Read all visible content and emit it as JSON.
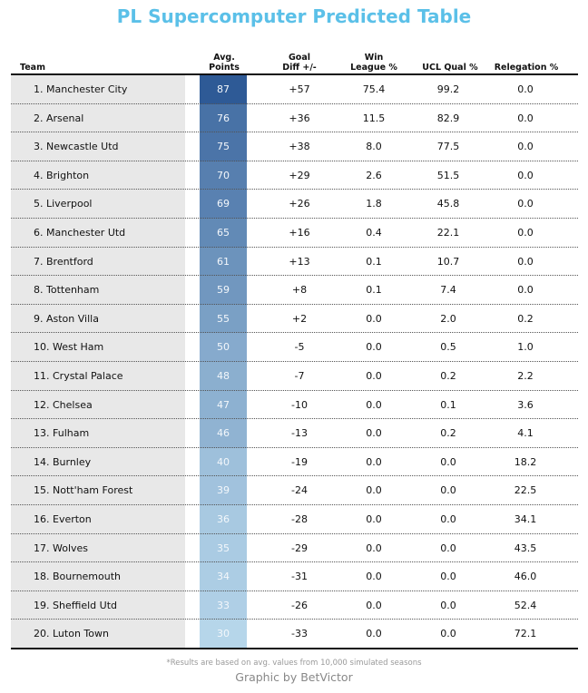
{
  "title": "PL Supercomputer Predicted Table",
  "headers": {
    "team": "Team",
    "pts_1": "Avg.",
    "pts_2": "Points",
    "gd_1": "Goal",
    "gd_2": "Diff +/-",
    "win_1": "Win",
    "win_2": "League %",
    "ucl": "UCL Qual %",
    "rel": "Relegation %"
  },
  "footnote": "*Results are based on avg. values from 10,000 simulated seasons",
  "credit": "Graphic by BetVictor",
  "colors": {
    "title": "#5bc0e8",
    "points_high": "#2e5a96",
    "points_low": "#b6d6ea"
  },
  "chart_data": {
    "type": "table",
    "columns": [
      "Team",
      "Avg. Points",
      "Goal Diff +/-",
      "Win League %",
      "UCL Qual %",
      "Relegation %"
    ],
    "rows": [
      {
        "team": "1. Manchester City",
        "points": "87",
        "gd": "+57",
        "win": "75.4",
        "ucl": "99.2",
        "rel": "0.0"
      },
      {
        "team": "2. Arsenal",
        "points": "76",
        "gd": "+36",
        "win": "11.5",
        "ucl": "82.9",
        "rel": "0.0"
      },
      {
        "team": "3. Newcastle Utd",
        "points": "75",
        "gd": "+38",
        "win": "8.0",
        "ucl": "77.5",
        "rel": "0.0"
      },
      {
        "team": "4. Brighton",
        "points": "70",
        "gd": "+29",
        "win": "2.6",
        "ucl": "51.5",
        "rel": "0.0"
      },
      {
        "team": "5. Liverpool",
        "points": "69",
        "gd": "+26",
        "win": "1.8",
        "ucl": "45.8",
        "rel": "0.0"
      },
      {
        "team": "6. Manchester Utd",
        "points": "65",
        "gd": "+16",
        "win": "0.4",
        "ucl": "22.1",
        "rel": "0.0"
      },
      {
        "team": "7. Brentford",
        "points": "61",
        "gd": "+13",
        "win": "0.1",
        "ucl": "10.7",
        "rel": "0.0"
      },
      {
        "team": "8. Tottenham",
        "points": "59",
        "gd": "+8",
        "win": "0.1",
        "ucl": "7.4",
        "rel": "0.0"
      },
      {
        "team": "9. Aston Villa",
        "points": "55",
        "gd": "+2",
        "win": "0.0",
        "ucl": "2.0",
        "rel": "0.2"
      },
      {
        "team": "10. West Ham",
        "points": "50",
        "gd": "-5",
        "win": "0.0",
        "ucl": "0.5",
        "rel": "1.0"
      },
      {
        "team": "11. Crystal Palace",
        "points": "48",
        "gd": "-7",
        "win": "0.0",
        "ucl": "0.2",
        "rel": "2.2"
      },
      {
        "team": "12. Chelsea",
        "points": "47",
        "gd": "-10",
        "win": "0.0",
        "ucl": "0.1",
        "rel": "3.6"
      },
      {
        "team": "13. Fulham",
        "points": "46",
        "gd": "-13",
        "win": "0.0",
        "ucl": "0.2",
        "rel": "4.1"
      },
      {
        "team": "14. Burnley",
        "points": "40",
        "gd": "-19",
        "win": "0.0",
        "ucl": "0.0",
        "rel": "18.2"
      },
      {
        "team": "15. Nott'ham Forest",
        "points": "39",
        "gd": "-24",
        "win": "0.0",
        "ucl": "0.0",
        "rel": "22.5"
      },
      {
        "team": "16. Everton",
        "points": "36",
        "gd": "-28",
        "win": "0.0",
        "ucl": "0.0",
        "rel": "34.1"
      },
      {
        "team": "17. Wolves",
        "points": "35",
        "gd": "-29",
        "win": "0.0",
        "ucl": "0.0",
        "rel": "43.5"
      },
      {
        "team": "18. Bournemouth",
        "points": "34",
        "gd": "-31",
        "win": "0.0",
        "ucl": "0.0",
        "rel": "46.0"
      },
      {
        "team": "19. Sheffield Utd",
        "points": "33",
        "gd": "-26",
        "win": "0.0",
        "ucl": "0.0",
        "rel": "52.4"
      },
      {
        "team": "20. Luton Town",
        "points": "30",
        "gd": "-33",
        "win": "0.0",
        "ucl": "0.0",
        "rel": "72.1"
      }
    ]
  }
}
